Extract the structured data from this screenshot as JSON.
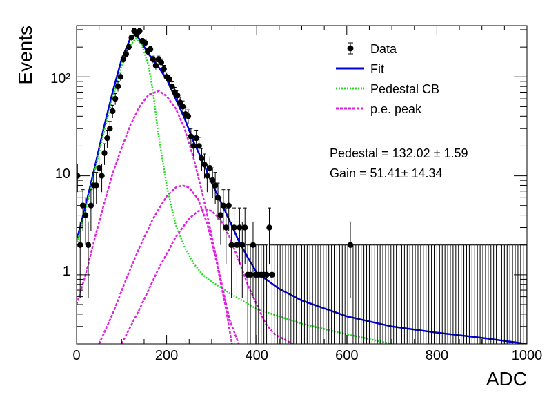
{
  "chart_data": {
    "type": "scatter",
    "xlabel": "ADC",
    "ylabel": "Events",
    "xlim": [
      0,
      1000
    ],
    "ylim": [
      0.2,
      330
    ],
    "yscale": "log",
    "x_ticks": [
      "0",
      "200",
      "400",
      "600",
      "800",
      "1000"
    ],
    "y_ticks": [
      "1",
      "10",
      "10²"
    ],
    "legend": {
      "placement": "top-right",
      "entries": [
        "Data",
        "Fit",
        "Pedestal CB",
        "p.e. peak"
      ]
    },
    "annotations": [
      "Pedestal = 132.02 ± 1.59",
      "Gain = 51.41± 14.34"
    ],
    "series": [
      {
        "name": "Data",
        "style": "markers-errorbars",
        "color": "#000000",
        "x": [
          2,
          8,
          14,
          20,
          26,
          32,
          38,
          44,
          50,
          56,
          62,
          68,
          74,
          80,
          86,
          92,
          98,
          104,
          110,
          116,
          122,
          128,
          134,
          140,
          146,
          152,
          158,
          164,
          170,
          176,
          182,
          188,
          194,
          200,
          206,
          212,
          218,
          224,
          230,
          236,
          242,
          248,
          254,
          260,
          266,
          272,
          278,
          284,
          290,
          296,
          302,
          308,
          314,
          320,
          326,
          332,
          338,
          344,
          350,
          356,
          362,
          368,
          374,
          380,
          386,
          392,
          398,
          404,
          410,
          416,
          422,
          428,
          434,
          440,
          446,
          452,
          458,
          464,
          470,
          476,
          482,
          488,
          494,
          500,
          506,
          512,
          518,
          524,
          530,
          536,
          542,
          548,
          554,
          560,
          566,
          572,
          578,
          584,
          590,
          596,
          602,
          608,
          614,
          620,
          626,
          632,
          638,
          644,
          650,
          656,
          662,
          668,
          674,
          680,
          686,
          692,
          698,
          704,
          710,
          716,
          722,
          728,
          734,
          740,
          746,
          752,
          758,
          764,
          770,
          776,
          782,
          788,
          794,
          800,
          806,
          812,
          818,
          824,
          830,
          836,
          842,
          848,
          854,
          860,
          866,
          872,
          878,
          884,
          890,
          896,
          902,
          908,
          914,
          920,
          926,
          932,
          938,
          944,
          950,
          956,
          962,
          968,
          974,
          980,
          986,
          992,
          998
        ],
        "y": [
          10,
          2,
          5,
          4,
          2,
          5,
          8,
          8,
          12,
          10,
          17,
          24,
          30,
          45,
          60,
          80,
          100,
          150,
          170,
          200,
          250,
          290,
          270,
          290,
          230,
          220,
          180,
          190,
          150,
          130,
          150,
          140,
          120,
          100,
          95,
          80,
          70,
          65,
          55,
          50,
          42,
          40,
          25,
          20,
          24,
          20,
          15,
          13,
          10,
          12,
          9,
          8,
          6,
          4,
          5,
          3,
          5,
          2,
          3,
          2,
          3,
          2,
          3,
          1,
          1,
          2,
          1,
          1,
          1,
          1,
          1,
          3,
          1,
          1,
          1,
          1,
          1,
          1,
          1,
          1,
          1,
          1,
          1,
          1,
          1,
          1,
          1,
          1,
          1,
          1,
          1,
          1,
          1,
          1,
          1,
          1,
          1,
          1,
          1,
          1,
          1,
          2,
          1,
          1,
          1,
          1,
          1,
          1,
          1,
          1,
          1,
          1,
          1,
          1,
          1,
          1,
          1,
          1,
          1,
          1,
          1,
          1,
          1,
          1,
          1,
          1,
          1,
          1,
          1,
          1,
          1,
          1,
          1,
          1,
          1,
          1,
          1,
          1,
          1,
          1,
          1,
          1,
          1,
          1,
          1,
          1,
          1,
          1,
          1,
          1,
          1,
          1,
          1,
          1,
          1,
          1,
          1,
          1,
          1,
          1,
          1,
          1,
          1,
          1,
          1,
          1,
          1
        ],
        "empty_bins_with_errors_from": 440
      },
      {
        "name": "Fit",
        "style": "solid",
        "color": "#0000dd",
        "x": [
          0,
          20,
          40,
          60,
          80,
          100,
          120,
          130,
          140,
          160,
          180,
          200,
          220,
          240,
          260,
          280,
          300,
          320,
          340,
          360,
          380,
          400,
          450,
          500,
          600,
          700,
          800,
          900,
          1000
        ],
        "y": [
          2.2,
          5,
          12,
          30,
          70,
          150,
          250,
          270,
          240,
          170,
          130,
          95,
          60,
          38,
          22,
          14,
          8.5,
          5.5,
          3.5,
          2.2,
          1.5,
          1.05,
          0.72,
          0.55,
          0.38,
          0.3,
          0.26,
          0.23,
          0.2
        ]
      },
      {
        "name": "Pedestal CB",
        "style": "dotted",
        "color": "#22dd22",
        "x": [
          0,
          20,
          40,
          60,
          80,
          100,
          120,
          132,
          145,
          160,
          170,
          180,
          200,
          220,
          240,
          260,
          280,
          300,
          320,
          340,
          400,
          500,
          600,
          700
        ],
        "y": [
          2.0,
          4.5,
          11,
          27,
          60,
          130,
          210,
          245,
          210,
          130,
          70,
          30,
          8,
          3.2,
          1.9,
          1.3,
          1.0,
          0.85,
          0.75,
          0.65,
          0.45,
          0.32,
          0.25,
          0.2
        ]
      },
      {
        "name": "p.e. peak",
        "style": "dotted",
        "color": "#e020e0",
        "x": [
          0,
          20,
          40,
          60,
          80,
          100,
          120,
          140,
          160,
          183,
          200,
          220,
          240,
          260,
          280,
          300,
          320,
          340,
          360
        ],
        "y": [
          0.5,
          1.0,
          2.3,
          5,
          10.5,
          19,
          33,
          50,
          66,
          72,
          64,
          48,
          30,
          15,
          6.5,
          2.5,
          0.9,
          0.35,
          0.2
        ]
      },
      {
        "name": "p.e. peak (2)",
        "style": "dotted",
        "color": "#e020e0",
        "x": [
          50,
          80,
          110,
          140,
          170,
          200,
          220,
          235,
          250,
          270,
          290,
          310,
          330,
          345
        ],
        "y": [
          0.2,
          0.4,
          0.9,
          1.9,
          3.7,
          6.2,
          7.6,
          8.0,
          7.6,
          5.8,
          3.3,
          1.4,
          0.5,
          0.2
        ]
      },
      {
        "name": "p.e. peak (3)",
        "style": "dotted",
        "color": "#e020e0",
        "x": [
          100,
          140,
          180,
          220,
          250,
          270,
          288,
          300,
          320,
          340,
          360,
          380,
          400,
          420,
          440,
          480
        ],
        "y": [
          0.2,
          0.45,
          1.1,
          2.4,
          3.7,
          4.4,
          4.6,
          4.4,
          3.6,
          2.4,
          1.4,
          0.8,
          0.5,
          0.32,
          0.25,
          0.2
        ]
      }
    ]
  }
}
